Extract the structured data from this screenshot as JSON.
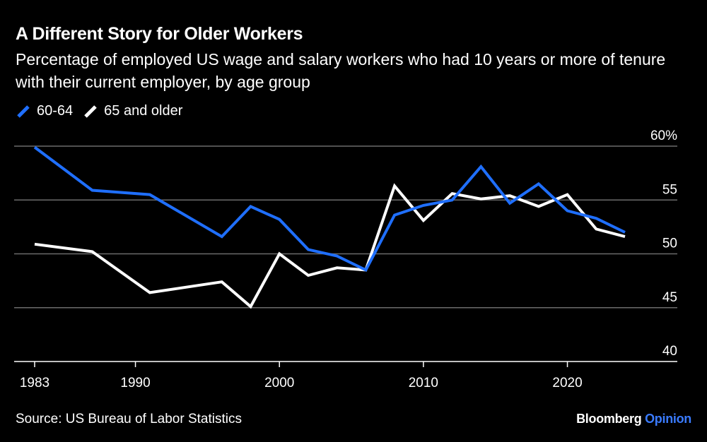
{
  "title": "A Different Story for Older Workers",
  "subtitle": "Percentage of employed US wage and salary workers who had 10 years or more of tenure with their current employer, by age group",
  "legend": [
    {
      "name": "60-64",
      "color": "#1f6fff"
    },
    {
      "name": "65 and older",
      "color": "#ffffff"
    }
  ],
  "source": "Source: US Bureau of Labor Statistics",
  "brand": {
    "name": "Bloomberg",
    "accent": "Opinion"
  },
  "chart_data": {
    "type": "line",
    "xlim": [
      1983,
      2024
    ],
    "ylim": [
      40,
      60
    ],
    "x_ticks": [
      1983,
      1990,
      2000,
      2010,
      2020
    ],
    "y_ticks": [
      40,
      45,
      50,
      55,
      60
    ],
    "y_tick_labels": [
      "40",
      "45",
      "50",
      "55",
      "60%"
    ],
    "grid": true,
    "legend_position": "top-left",
    "series": [
      {
        "name": "60-64",
        "color": "#1f6fff",
        "x": [
          1983,
          1987,
          1991,
          1996,
          1998,
          2000,
          2002,
          2004,
          2006,
          2008,
          2010,
          2012,
          2014,
          2016,
          2018,
          2020,
          2022,
          2024
        ],
        "y": [
          59.9,
          55.9,
          55.5,
          51.6,
          54.4,
          53.2,
          50.4,
          49.8,
          48.5,
          53.6,
          54.5,
          55.0,
          58.1,
          54.7,
          56.5,
          54.0,
          53.3,
          52.0
        ]
      },
      {
        "name": "65 and older",
        "color": "#ffffff",
        "x": [
          1983,
          1987,
          1991,
          1996,
          1998,
          2000,
          2002,
          2004,
          2006,
          2008,
          2010,
          2012,
          2014,
          2016,
          2018,
          2020,
          2022,
          2024
        ],
        "y": [
          50.9,
          50.2,
          46.4,
          47.4,
          45.1,
          50.0,
          48.0,
          48.7,
          48.5,
          56.3,
          53.1,
          55.6,
          55.1,
          55.4,
          54.4,
          55.5,
          52.3,
          51.6
        ]
      }
    ]
  }
}
